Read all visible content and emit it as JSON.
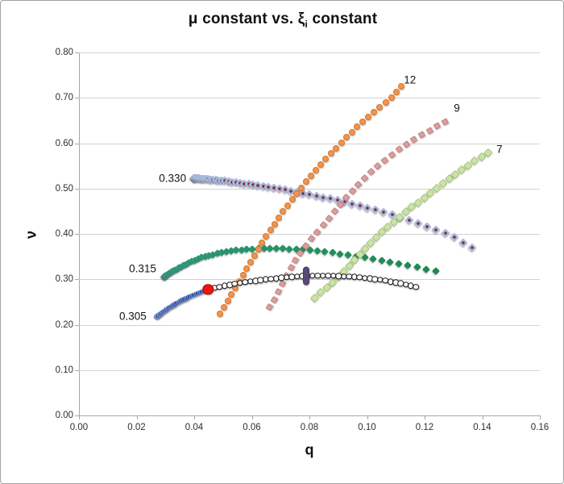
{
  "frame": {
    "border_color": "#A2A2A2",
    "background": "#FFFFFF"
  },
  "chart_data": {
    "type": "scatter",
    "title": {
      "prefix": "μ constant vs. ξ",
      "subscript": "i",
      "suffix": " constant"
    },
    "xlabel": "q",
    "ylabel": "ν",
    "xlim": [
      0,
      0.16
    ],
    "ylim": [
      0,
      0.8
    ],
    "x_ticks": [
      0.0,
      0.02,
      0.04,
      0.06,
      0.08,
      0.1,
      0.12,
      0.14,
      0.16
    ],
    "y_ticks": [
      0.0,
      0.1,
      0.2,
      0.3,
      0.4,
      0.5,
      0.6,
      0.7,
      0.8
    ],
    "grid": "horizontal-only",
    "gridline_color": "#D2D2D2",
    "axis_color": "#A6A6A6",
    "tick_label_color": "#2E2E2E",
    "legend_position": "none",
    "series": [
      {
        "id": "mu-0330",
        "name": "mu = 0.330 curve",
        "annotation_label": "0.330",
        "marker": "diamond",
        "size": 8,
        "fill": "#A9BADF",
        "center_dot": "#8B3134",
        "n": 56,
        "spread": 2.0,
        "points": [
          [
            0.04,
            0.523
          ],
          [
            0.05,
            0.517
          ],
          [
            0.06,
            0.509
          ],
          [
            0.07,
            0.499
          ],
          [
            0.08,
            0.487
          ],
          [
            0.09,
            0.474
          ],
          [
            0.1,
            0.458
          ],
          [
            0.11,
            0.44
          ],
          [
            0.12,
            0.418
          ],
          [
            0.128,
            0.4
          ],
          [
            0.1365,
            0.37
          ]
        ]
      },
      {
        "id": "mu-0315",
        "name": "mu = 0.315 curve",
        "annotation_label": "0.315",
        "marker": "diamond",
        "size": 7,
        "fill": "#33A292",
        "fill_end": "#1E8A4E",
        "n": 58,
        "spread": 2.0,
        "points": [
          [
            0.0297,
            0.306
          ],
          [
            0.036,
            0.33
          ],
          [
            0.042,
            0.347
          ],
          [
            0.048,
            0.357
          ],
          [
            0.055,
            0.364
          ],
          [
            0.063,
            0.3675
          ],
          [
            0.0695,
            0.368
          ],
          [
            0.079,
            0.365
          ],
          [
            0.09,
            0.357
          ],
          [
            0.102,
            0.345
          ],
          [
            0.113,
            0.332
          ],
          [
            0.124,
            0.318
          ]
        ]
      },
      {
        "id": "mu-0305",
        "name": "mu = 0.305 curve",
        "annotation_label": "0.305",
        "marker": "circle",
        "size": 6.5,
        "fill": "#2A4DA4",
        "edge": "#7E96CE",
        "n": 32,
        "spread": 1.2,
        "points": [
          [
            0.0269,
            0.217
          ],
          [
            0.031,
            0.236
          ],
          [
            0.0355,
            0.253
          ],
          [
            0.04,
            0.266
          ],
          [
            0.0448,
            0.278
          ]
        ]
      },
      {
        "id": "xi-12",
        "name": "xi = 12 curve",
        "annotation_label": "12",
        "marker": "circle",
        "size": 8,
        "fill": "#F2944C",
        "edge": "#D8772B",
        "n": 40,
        "spread": 1.0,
        "points": [
          [
            0.049,
            0.224
          ],
          [
            0.0535,
            0.272
          ],
          [
            0.0585,
            0.327
          ],
          [
            0.0645,
            0.39
          ],
          [
            0.0715,
            0.455
          ],
          [
            0.0795,
            0.52
          ],
          [
            0.0875,
            0.578
          ],
          [
            0.0955,
            0.63
          ],
          [
            0.103,
            0.672
          ],
          [
            0.109,
            0.703
          ],
          [
            0.112,
            0.725
          ]
        ]
      },
      {
        "id": "xi-9",
        "name": "xi = 9 curve",
        "annotation_label": "9",
        "marker": "square",
        "size": 6.5,
        "fill": "#DC9E9E",
        "edge": "#C48080",
        "n": 30,
        "spread": 1.0,
        "points": [
          [
            0.066,
            0.238
          ],
          [
            0.069,
            0.27
          ],
          [
            0.0713,
            0.3
          ],
          [
            0.076,
            0.352
          ],
          [
            0.082,
            0.4
          ],
          [
            0.089,
            0.452
          ],
          [
            0.0954,
            0.5
          ],
          [
            0.104,
            0.552
          ],
          [
            0.114,
            0.6
          ],
          [
            0.123,
            0.633
          ],
          [
            0.127,
            0.647
          ]
        ]
      },
      {
        "id": "xi-7",
        "name": "xi = 7 curve",
        "annotation_label": "7",
        "marker": "diamond",
        "size": 7.5,
        "fill": "#CBE4A4",
        "edge": "#A9C97E",
        "n": 30,
        "spread": 1.0,
        "points": [
          [
            0.082,
            0.26
          ],
          [
            0.086,
            0.282
          ],
          [
            0.0895,
            0.3
          ],
          [
            0.097,
            0.352
          ],
          [
            0.1043,
            0.4
          ],
          [
            0.114,
            0.452
          ],
          [
            0.1239,
            0.5
          ],
          [
            0.133,
            0.543
          ],
          [
            0.142,
            0.58
          ]
        ]
      },
      {
        "id": "open-circles",
        "name": "open circle curve",
        "marker": "ring",
        "size": 7.5,
        "fill": "#FFFFFF",
        "edge": "#141414",
        "n": 40,
        "spread": 1.0,
        "points": [
          [
            0.047,
            0.281
          ],
          [
            0.056,
            0.2925
          ],
          [
            0.065,
            0.3
          ],
          [
            0.074,
            0.3055
          ],
          [
            0.082,
            0.3085
          ],
          [
            0.09,
            0.3075
          ],
          [
            0.098,
            0.304
          ],
          [
            0.105,
            0.2985
          ],
          [
            0.111,
            0.292
          ],
          [
            0.117,
            0.283
          ]
        ]
      },
      {
        "id": "purple-marker",
        "name": "purple highlight point",
        "marker": "vcapsule",
        "size": 8,
        "height": 23,
        "fill": "#5A4879",
        "edge": "#463862",
        "n": 1,
        "spread": 1.0,
        "points": [
          [
            0.079,
            0.308
          ]
        ]
      },
      {
        "id": "red-point",
        "name": "red highlight point",
        "marker": "circle",
        "size": 13.5,
        "fill": "#F5120A",
        "edge": "#9E0B06",
        "n": 1,
        "spread": 1.0,
        "points": [
          [
            0.0448,
            0.278
          ]
        ]
      }
    ],
    "annotations": [
      {
        "text": "0.330",
        "x": 0.0325,
        "y": 0.5227,
        "series": "mu-0330"
      },
      {
        "text": "0.315",
        "x": 0.0221,
        "y": 0.3236,
        "series": "mu-0315"
      },
      {
        "text": "0.305",
        "x": 0.0187,
        "y": 0.2187,
        "series": "mu-0305"
      },
      {
        "text": "12",
        "x": 0.1149,
        "y": 0.7396,
        "series": "xi-12"
      },
      {
        "text": "9",
        "x": 0.1312,
        "y": 0.6773,
        "series": "xi-9"
      },
      {
        "text": "7",
        "x": 0.146,
        "y": 0.5867,
        "series": "xi-7"
      }
    ]
  }
}
